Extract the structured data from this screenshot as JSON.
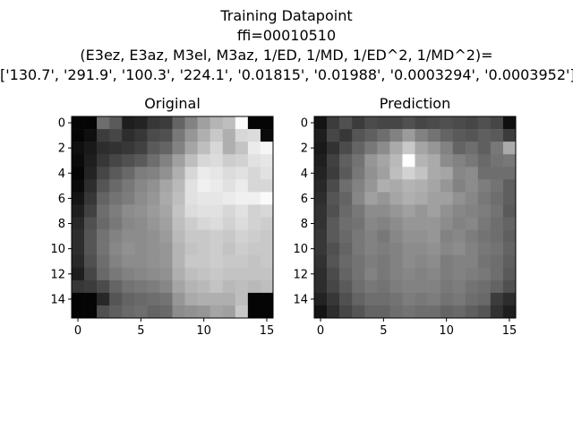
{
  "title": {
    "line1": "Training Datapoint",
    "line2": "ffi=00010510",
    "line3": "(E3ez, E3az, M3el, M3az, 1/ED, 1/MD, 1/ED^2, 1/MD^2)=",
    "line4": "['130.7', '291.9', '100.3', '224.1', '0.01815', '0.01988', '0.0003294', '0.0003952']"
  },
  "chart_data": [
    {
      "type": "heatmap",
      "title": "Original",
      "colormap": "gray",
      "x_ticks": [
        0,
        5,
        10,
        15
      ],
      "y_ticks": [
        0,
        2,
        4,
        6,
        8,
        10,
        12,
        14
      ],
      "xlim": [
        -0.5,
        15.5
      ],
      "ylim": [
        15.5,
        -0.5
      ],
      "values": [
        [
          5,
          5,
          110,
          90,
          30,
          35,
          55,
          60,
          100,
          130,
          160,
          180,
          190,
          250,
          5,
          5
        ],
        [
          5,
          15,
          60,
          70,
          45,
          55,
          75,
          80,
          120,
          150,
          175,
          200,
          175,
          215,
          220,
          10
        ],
        [
          15,
          25,
          45,
          50,
          55,
          65,
          90,
          100,
          130,
          165,
          190,
          215,
          175,
          195,
          235,
          245
        ],
        [
          10,
          30,
          55,
          70,
          80,
          90,
          110,
          130,
          160,
          190,
          215,
          220,
          205,
          210,
          225,
          230
        ],
        [
          5,
          35,
          70,
          90,
          105,
          125,
          130,
          145,
          175,
          215,
          235,
          230,
          220,
          225,
          215,
          225
        ],
        [
          10,
          45,
          85,
          105,
          120,
          135,
          145,
          165,
          185,
          225,
          240,
          235,
          225,
          235,
          215,
          215
        ],
        [
          20,
          55,
          100,
          115,
          125,
          140,
          150,
          170,
          190,
          225,
          230,
          230,
          235,
          240,
          240,
          250
        ],
        [
          30,
          65,
          110,
          125,
          140,
          145,
          155,
          165,
          195,
          220,
          225,
          225,
          215,
          225,
          210,
          215
        ],
        [
          40,
          80,
          105,
          120,
          135,
          140,
          150,
          160,
          190,
          205,
          215,
          220,
          210,
          220,
          210,
          205
        ],
        [
          45,
          85,
          115,
          130,
          140,
          140,
          145,
          155,
          185,
          200,
          200,
          205,
          200,
          210,
          205,
          200
        ],
        [
          45,
          85,
          115,
          135,
          145,
          140,
          145,
          150,
          180,
          195,
          200,
          205,
          195,
          205,
          200,
          200
        ],
        [
          40,
          80,
          110,
          130,
          140,
          140,
          145,
          150,
          180,
          200,
          200,
          205,
          200,
          200,
          195,
          200
        ],
        [
          30,
          70,
          105,
          120,
          130,
          135,
          140,
          145,
          175,
          190,
          195,
          200,
          195,
          195,
          195,
          195
        ],
        [
          55,
          60,
          75,
          100,
          115,
          120,
          125,
          135,
          165,
          180,
          185,
          195,
          185,
          190,
          185,
          190
        ],
        [
          5,
          5,
          40,
          85,
          100,
          105,
          110,
          115,
          150,
          170,
          175,
          175,
          175,
          190,
          5,
          5
        ],
        [
          5,
          5,
          80,
          95,
          105,
          110,
          100,
          105,
          140,
          145,
          150,
          165,
          160,
          200,
          5,
          5
        ]
      ]
    },
    {
      "type": "heatmap",
      "title": "Prediction",
      "colormap": "gray",
      "x_ticks": [
        0,
        5,
        10,
        15
      ],
      "y_ticks": [
        0,
        2,
        4,
        6,
        8,
        10,
        12,
        14
      ],
      "xlim": [
        -0.5,
        15.5
      ],
      "ylim": [
        15.5,
        -0.5
      ],
      "values": [
        [
          20,
          60,
          80,
          60,
          75,
          70,
          70,
          80,
          70,
          75,
          80,
          75,
          70,
          80,
          70,
          15
        ],
        [
          30,
          70,
          55,
          85,
          95,
          110,
          130,
          155,
          130,
          115,
          100,
          90,
          85,
          95,
          90,
          60
        ],
        [
          25,
          50,
          75,
          100,
          120,
          140,
          170,
          200,
          165,
          150,
          130,
          100,
          110,
          95,
          120,
          170
        ],
        [
          30,
          65,
          95,
          115,
          150,
          165,
          185,
          255,
          180,
          170,
          140,
          130,
          120,
          105,
          115,
          120
        ],
        [
          35,
          60,
          90,
          120,
          145,
          160,
          190,
          210,
          195,
          170,
          165,
          135,
          140,
          110,
          110,
          110
        ],
        [
          40,
          75,
          110,
          130,
          150,
          175,
          170,
          180,
          175,
          165,
          150,
          130,
          140,
          125,
          115,
          95
        ],
        [
          45,
          85,
          100,
          135,
          160,
          150,
          165,
          175,
          170,
          160,
          160,
          145,
          135,
          120,
          110,
          95
        ],
        [
          50,
          80,
          105,
          120,
          140,
          140,
          150,
          160,
          150,
          160,
          145,
          135,
          130,
          125,
          115,
          90
        ],
        [
          50,
          90,
          110,
          115,
          135,
          130,
          140,
          150,
          150,
          150,
          140,
          130,
          135,
          120,
          110,
          100
        ],
        [
          55,
          90,
          105,
          120,
          130,
          120,
          135,
          145,
          145,
          150,
          130,
          135,
          125,
          115,
          110,
          95
        ],
        [
          55,
          80,
          100,
          120,
          130,
          125,
          130,
          140,
          140,
          145,
          135,
          140,
          130,
          120,
          115,
          100
        ],
        [
          50,
          85,
          105,
          115,
          125,
          120,
          130,
          140,
          135,
          140,
          125,
          130,
          130,
          115,
          110,
          95
        ],
        [
          45,
          75,
          100,
          115,
          130,
          120,
          130,
          135,
          130,
          135,
          125,
          130,
          125,
          120,
          110,
          90
        ],
        [
          45,
          70,
          90,
          110,
          120,
          115,
          125,
          130,
          130,
          130,
          120,
          125,
          115,
          110,
          100,
          80
        ],
        [
          35,
          55,
          80,
          100,
          110,
          110,
          115,
          125,
          120,
          125,
          115,
          120,
          110,
          105,
          60,
          45
        ],
        [
          20,
          45,
          70,
          85,
          100,
          100,
          110,
          115,
          110,
          110,
          100,
          105,
          95,
          85,
          50,
          30
        ]
      ]
    }
  ]
}
